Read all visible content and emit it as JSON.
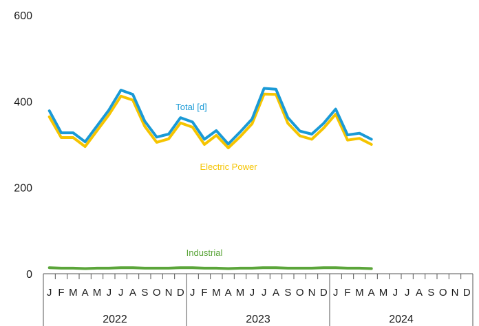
{
  "chart_data": {
    "type": "line",
    "title": "",
    "xlabel": "",
    "ylabel": "",
    "ylim": [
      0,
      600
    ],
    "yticks": [
      "0",
      "200",
      "400",
      "600"
    ],
    "grid": false,
    "month_labels": [
      "J",
      "F",
      "M",
      "A",
      "M",
      "J",
      "J",
      "A",
      "S",
      "O",
      "N",
      "D",
      "J",
      "F",
      "M",
      "A",
      "M",
      "J",
      "J",
      "A",
      "S",
      "O",
      "N",
      "D",
      "J",
      "F",
      "M",
      "A",
      "M",
      "J",
      "J",
      "A",
      "S",
      "O",
      "N",
      "D"
    ],
    "years": [
      "2022",
      "2023",
      "2024"
    ],
    "x": [
      "2022-01",
      "2022-02",
      "2022-03",
      "2022-04",
      "2022-05",
      "2022-06",
      "2022-07",
      "2022-08",
      "2022-09",
      "2022-10",
      "2022-11",
      "2022-12",
      "2023-01",
      "2023-02",
      "2023-03",
      "2023-04",
      "2023-05",
      "2023-06",
      "2023-07",
      "2023-08",
      "2023-09",
      "2023-10",
      "2023-11",
      "2023-12",
      "2024-01",
      "2024-02",
      "2024-03",
      "2024-04"
    ],
    "series": [
      {
        "name": "Total [d]",
        "color": "#1A9AD6",
        "values": [
          378,
          327,
          327,
          306,
          343,
          380,
          426,
          416,
          354,
          317,
          324,
          362,
          352,
          312,
          332,
          301,
          329,
          359,
          430,
          428,
          362,
          331,
          324,
          349,
          382,
          322,
          326,
          312
        ]
      },
      {
        "name": "Electric Power",
        "color": "#F5C400",
        "values": [
          364,
          316,
          316,
          295,
          332,
          369,
          412,
          403,
          342,
          305,
          313,
          350,
          340,
          300,
          321,
          292,
          318,
          348,
          417,
          416,
          349,
          320,
          312,
          338,
          370,
          310,
          314,
          300
        ]
      },
      {
        "name": "Industrial",
        "color": "#5BA53A",
        "values": [
          14,
          13,
          13,
          12,
          13,
          13,
          14,
          14,
          13,
          13,
          13,
          14,
          14,
          13,
          13,
          12,
          13,
          13,
          14,
          14,
          13,
          13,
          13,
          14,
          14,
          13,
          13,
          12
        ]
      }
    ]
  }
}
